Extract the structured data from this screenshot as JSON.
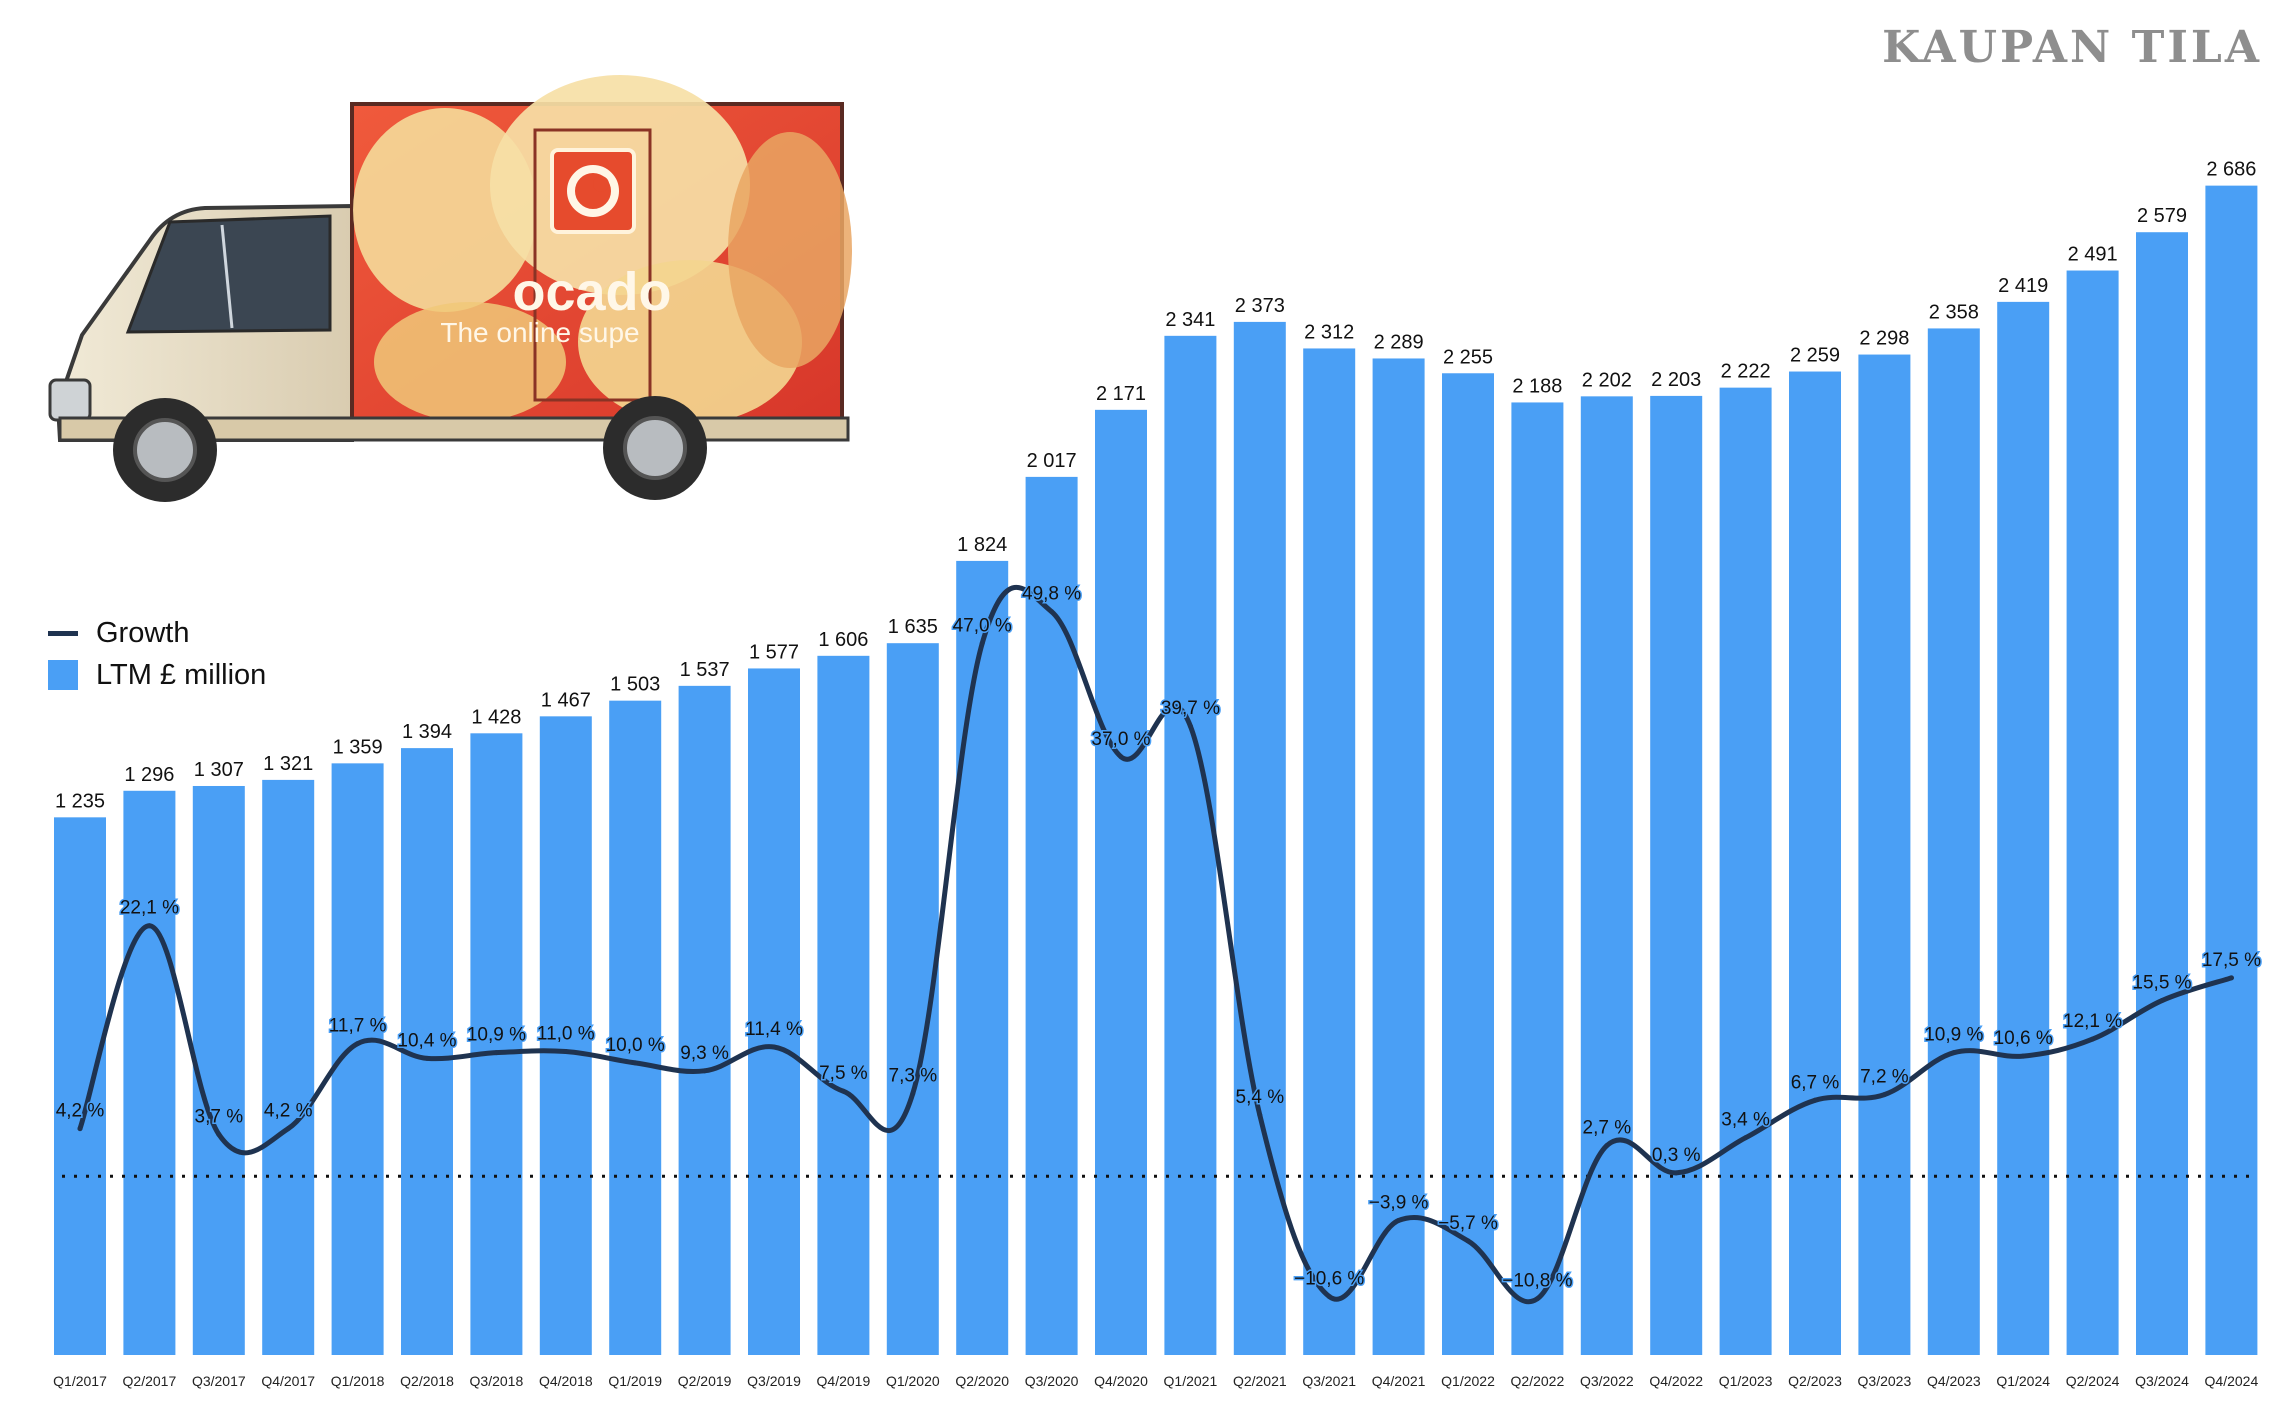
{
  "brand": "KAUPAN TILA",
  "colors": {
    "bar": "#4a9ff5",
    "line": "#1f3350",
    "zero_line": "#111111"
  },
  "legend": {
    "growth_label": "Growth",
    "bars_label": "LTM £ million"
  },
  "van_image": {
    "icon": "delivery-van-illustration",
    "logo_text": "ocado",
    "tagline": "The online supe"
  },
  "chart_data": {
    "type": "bar",
    "title": "",
    "xlabel": "",
    "ylabel": "",
    "grid": false,
    "legend_position": "middle-left",
    "categories": [
      "Q1/2017",
      "Q2/2017",
      "Q3/2017",
      "Q4/2017",
      "Q1/2018",
      "Q2/2018",
      "Q3/2018",
      "Q4/2018",
      "Q1/2019",
      "Q2/2019",
      "Q3/2019",
      "Q4/2019",
      "Q1/2020",
      "Q2/2020",
      "Q3/2020",
      "Q4/2020",
      "Q1/2021",
      "Q2/2021",
      "Q3/2021",
      "Q4/2021",
      "Q1/2022",
      "Q2/2022",
      "Q3/2022",
      "Q4/2022",
      "Q1/2023",
      "Q2/2023",
      "Q3/2023",
      "Q4/2023",
      "Q1/2024",
      "Q2/2024",
      "Q3/2024",
      "Q4/2024"
    ],
    "series": [
      {
        "name": "LTM £ million",
        "type": "bar",
        "values": [
          1235,
          1296,
          1307,
          1321,
          1359,
          1394,
          1428,
          1467,
          1503,
          1537,
          1577,
          1606,
          1635,
          1824,
          2017,
          2171,
          2341,
          2373,
          2312,
          2289,
          2255,
          2188,
          2202,
          2203,
          2222,
          2259,
          2298,
          2358,
          2419,
          2491,
          2579,
          2686
        ],
        "labels": [
          "1 235",
          "1 296",
          "1 307",
          "1 321",
          "1 359",
          "1 394",
          "1 428",
          "1 467",
          "1 503",
          "1 537",
          "1 577",
          "1 606",
          "1 635",
          "1 824",
          "2 017",
          "2 171",
          "2 341",
          "2 373",
          "2 312",
          "2 289",
          "2 255",
          "2 188",
          "2 202",
          "2 203",
          "2 222",
          "2 259",
          "2 298",
          "2 358",
          "2 419",
          "2 491",
          "2 579",
          "2 686"
        ]
      },
      {
        "name": "Growth",
        "type": "line",
        "values": [
          4.2,
          22.1,
          3.7,
          4.2,
          11.7,
          10.4,
          10.9,
          11.0,
          10.0,
          9.3,
          11.4,
          7.5,
          7.3,
          47.0,
          49.8,
          37.0,
          39.7,
          5.4,
          -10.6,
          -3.9,
          -5.7,
          -10.8,
          2.7,
          0.3,
          3.4,
          6.7,
          7.2,
          10.9,
          10.6,
          12.1,
          15.5,
          17.5
        ],
        "labels": [
          "4,2 %",
          "22,1 %",
          "3,7 %",
          "4,2 %",
          "11,7 %",
          "10,4 %",
          "10,9 %",
          "11,0 %",
          "10,0 %",
          "9,3 %",
          "11,4 %",
          "7,5 %",
          "7,3 %",
          "47,0 %",
          "49,8 %",
          "37,0 %",
          "39,7 %",
          "5,4 %",
          "−10,6 %",
          "−3,9 %",
          "−5,7 %",
          "−10,8 %",
          "2,7 %",
          "0,3 %",
          "3,4 %",
          "6,7 %",
          "7,2 %",
          "10,9 %",
          "10,6 %",
          "12,1 %",
          "15,5 %",
          "17,5 %"
        ]
      }
    ],
    "bar_ylim": [
      0,
      2800
    ],
    "growth_ylim": [
      -14,
      57
    ],
    "zero_reference": "dotted line at 0 % growth"
  }
}
